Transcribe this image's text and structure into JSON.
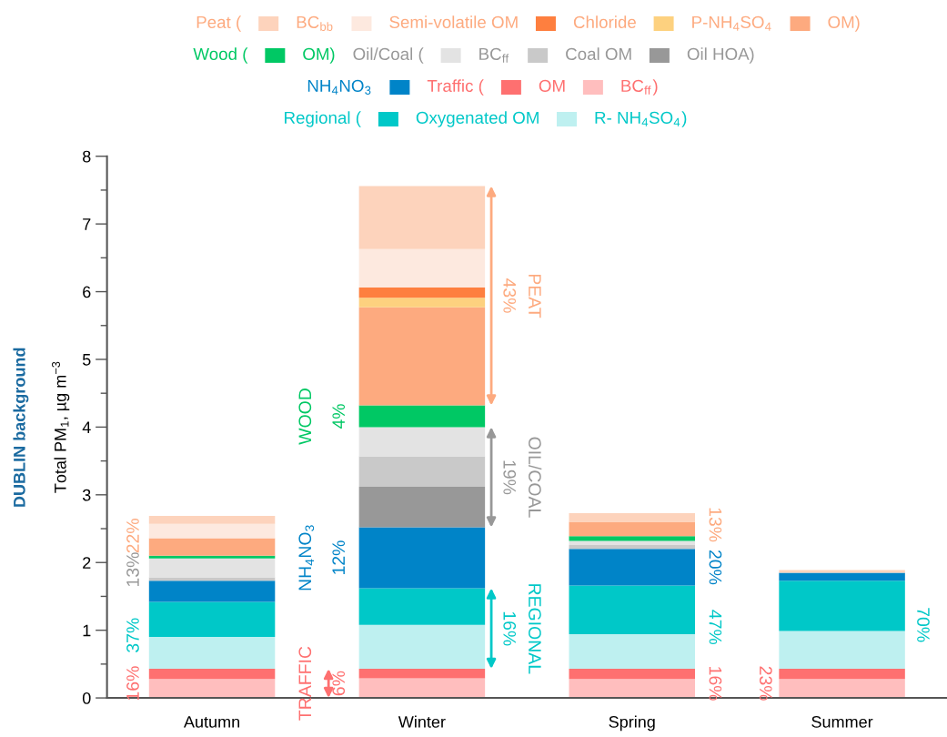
{
  "chart_data": {
    "type": "bar",
    "stacked": true,
    "title": "DUBLIN background",
    "ylabel": "Total PM$_{1}$, µg m$^{−3}$",
    "categories": [
      "Autumn",
      "Winter",
      "Spring",
      "Summer"
    ],
    "ylim": [
      0,
      8
    ],
    "yticks": [
      0,
      1,
      2,
      3,
      4,
      5,
      6,
      7,
      8
    ],
    "grid": false,
    "legend": "top",
    "series": [
      {
        "name": "BC$_{ff}$",
        "color": "#ffbebe",
        "values": [
          0.28,
          0.29,
          0.28,
          0.28
        ]
      },
      {
        "name": "OM",
        "color": "#fe7070",
        "values": [
          0.15,
          0.14,
          0.15,
          0.15
        ]
      },
      {
        "name": "R- NH$_{4}$SO$_{4}$",
        "color": "#bef0f0",
        "values": [
          0.47,
          0.65,
          0.51,
          0.56
        ]
      },
      {
        "name": "Oxygenated OM",
        "color": "#00c8c8",
        "values": [
          0.52,
          0.54,
          0.72,
          0.74
        ]
      },
      {
        "name": "NH$_{4}$NO$_{3}$",
        "color": "#0084c8",
        "values": [
          0.31,
          0.9,
          0.54,
          0.12
        ]
      },
      {
        "name": "Oil HOA",
        "color": "#989898",
        "values": [
          0,
          0.6,
          0,
          0
        ]
      },
      {
        "name": "Coal OM",
        "color": "#c9c9c9",
        "values": [
          0.05,
          0.45,
          0.06,
          0
        ]
      },
      {
        "name": "BC$_{ff}$",
        "color": "#e3e3e3",
        "values": [
          0.28,
          0.43,
          0.06,
          0
        ]
      },
      {
        "name": "OM",
        "color": "#00c864",
        "values": [
          0.04,
          0.32,
          0.07,
          0
        ]
      },
      {
        "name": "OM",
        "color": "#fdaa7f",
        "values": [
          0.26,
          1.45,
          0.21,
          0
        ]
      },
      {
        "name": "P-NH$_{4}$SO$_{4}$",
        "color": "#fdd17f",
        "values": [
          0,
          0.14,
          0,
          0
        ]
      },
      {
        "name": "Chloride",
        "color": "#fe7f3f",
        "values": [
          0,
          0.15,
          0,
          0
        ]
      },
      {
        "name": "Semi-volatile OM",
        "color": "#fde9df",
        "values": [
          0.21,
          0.57,
          0,
          0
        ]
      },
      {
        "name": "BC$_{bb}$",
        "color": "#fdd3bc",
        "values": [
          0.12,
          0.93,
          0.13,
          0.04
        ]
      }
    ],
    "annotations": [
      "22%",
      "13%",
      "37%",
      "16%",
      "WOOD",
      "4%",
      "NH$_{4}$NO$_{3}$",
      "12%",
      "TRAFFIC",
      "6%",
      "43%",
      "PEAT",
      "19%",
      "OIL/COAL",
      "16%",
      "REGIONAL",
      "13%",
      "20%",
      "47%",
      "16%",
      "23%",
      "70%",
      "Peat (",
      ")",
      "Wood (",
      ")",
      "Oil/Coal (",
      ")",
      "Traffic (",
      ")",
      "Regional (",
      ")"
    ]
  }
}
